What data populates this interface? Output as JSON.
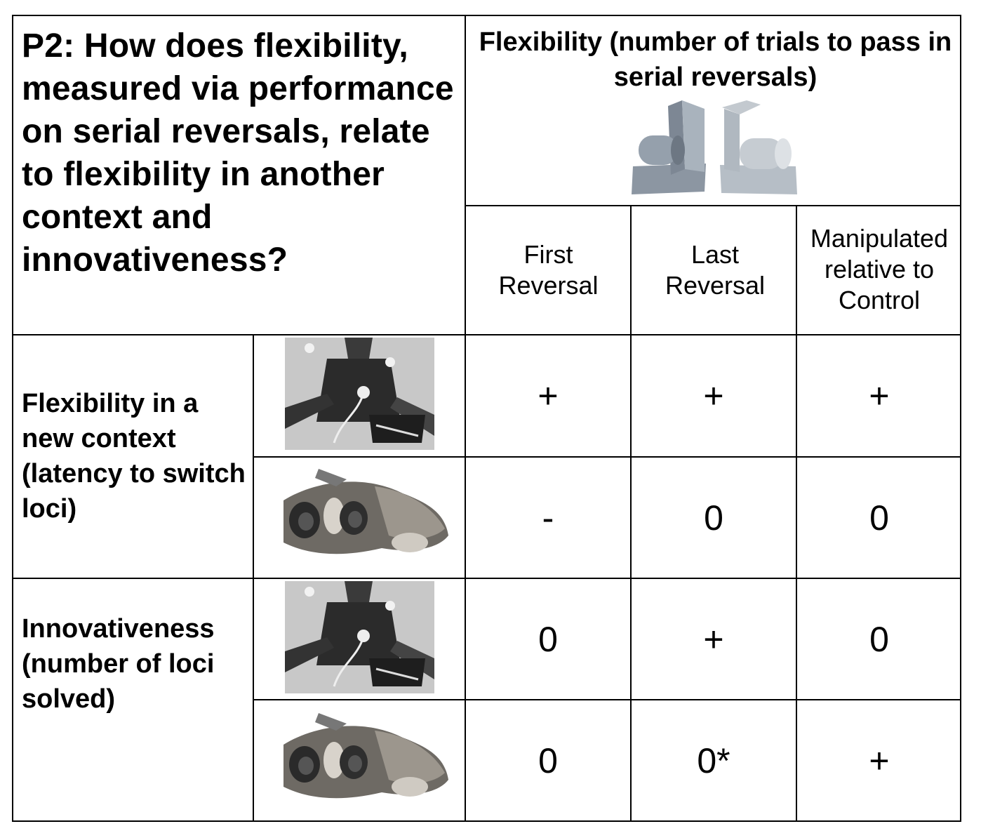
{
  "question": "P2: How does flexibility, measured via performance on serial reversals, relate to flexibility in another context and innovativeness?",
  "flexibility_header": "Flexibility (number of trials to pass in serial reversals)",
  "columns": [
    "First Reversal",
    "Last Reversal",
    "Manipulated relative to Control"
  ],
  "rows": [
    {
      "label": "Flexibility in a new context (latency to switch loci)",
      "entries": [
        {
          "apparatus": "plastic-apparatus-photo",
          "values": [
            "+",
            "+",
            "+"
          ]
        },
        {
          "apparatus": "log-apparatus-photo",
          "values": [
            "-",
            "0",
            "0"
          ]
        }
      ]
    },
    {
      "label": "Innovativeness (number of loci solved)",
      "entries": [
        {
          "apparatus": "plastic-apparatus-photo",
          "values": [
            "0",
            "+",
            "0"
          ]
        },
        {
          "apparatus": "log-apparatus-photo",
          "values": [
            "0",
            "0*",
            "+"
          ]
        }
      ]
    }
  ],
  "colors": {
    "border": "#000000",
    "background": "#ffffff",
    "photo_dark": "#2b2b2b",
    "photo_light": "#c8c8c8",
    "tube_blue": "#9aa6b2"
  }
}
